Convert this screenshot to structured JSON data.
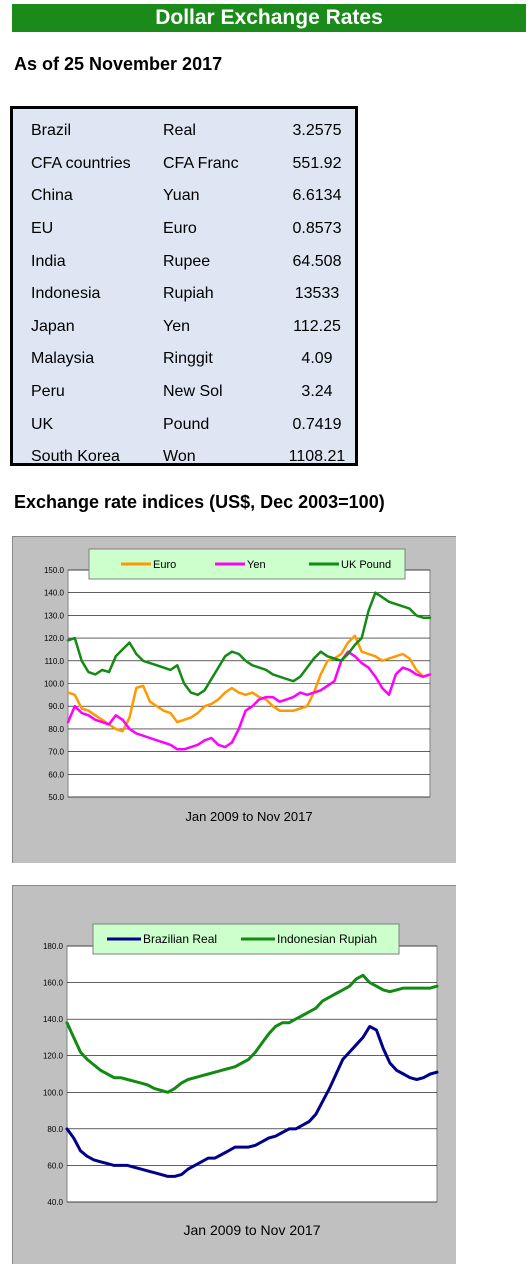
{
  "header": {
    "title": "Dollar Exchange Rates",
    "as_of": "As of 25 November 2017"
  },
  "rates": [
    {
      "country": "Brazil",
      "currency": "Real",
      "value": "3.2575"
    },
    {
      "country": "CFA countries",
      "currency": "CFA Franc",
      "value": "551.92"
    },
    {
      "country": "China",
      "currency": "Yuan",
      "value": "6.6134"
    },
    {
      "country": "EU",
      "currency": "Euro",
      "value": "0.8573"
    },
    {
      "country": "India",
      "currency": "Rupee",
      "value": "64.508"
    },
    {
      "country": "Indonesia",
      "currency": "Rupiah",
      "value": "13533"
    },
    {
      "country": "Japan",
      "currency": "Yen",
      "value": "112.25"
    },
    {
      "country": "Malaysia",
      "currency": "Ringgit",
      "value": "4.09"
    },
    {
      "country": "Peru",
      "currency": "New Sol",
      "value": "3.24"
    },
    {
      "country": "UK",
      "currency": "Pound",
      "value": "0.7419"
    },
    {
      "country": "South Korea",
      "currency": "Won",
      "value": "1108.21"
    }
  ],
  "indices_title": "Exchange rate indices (US$, Dec 2003=100)",
  "chart_data": [
    {
      "type": "line",
      "title": "",
      "xlabel": "Jan 2009  to Nov 2017",
      "ylabel": "",
      "ylim": [
        50,
        150
      ],
      "yticks": [
        "50.0",
        "60.0",
        "70.0",
        "80.0",
        "90.0",
        "100.0",
        "110.0",
        "120.0",
        "130.0",
        "140.0",
        "150.0"
      ],
      "grid": "horizontal",
      "legend": "top",
      "x_range": [
        "Jan 2009",
        "Nov 2017"
      ],
      "series": [
        {
          "name": "Euro",
          "color": "#ff9900",
          "values": [
            96,
            95,
            89,
            88,
            86,
            84,
            82,
            80,
            79,
            85,
            98,
            99,
            92,
            90,
            88,
            87,
            83,
            84,
            85,
            87,
            90,
            91,
            93,
            96,
            98,
            96,
            95,
            96,
            94,
            93,
            90,
            88,
            88,
            88,
            89,
            90,
            96,
            104,
            110,
            111,
            113,
            118,
            121,
            114,
            113,
            112,
            110,
            111,
            112,
            113,
            111,
            106,
            103,
            104
          ]
        },
        {
          "name": "Yen",
          "color": "#ff00ff",
          "values": [
            83,
            90,
            87,
            86,
            84,
            83,
            82,
            86,
            84,
            80,
            78,
            77,
            76,
            75,
            74,
            73,
            71,
            71,
            72,
            73,
            75,
            76,
            73,
            72,
            74,
            80,
            88,
            90,
            93,
            94,
            94,
            92,
            93,
            94,
            96,
            95,
            96,
            97,
            99,
            101,
            110,
            114,
            112,
            109,
            107,
            103,
            98,
            95,
            104,
            107,
            106,
            104,
            103,
            104
          ]
        },
        {
          "name": "UK Pound",
          "color": "#138a13",
          "values": [
            119,
            120,
            110,
            105,
            104,
            106,
            105,
            112,
            115,
            118,
            113,
            110,
            109,
            108,
            107,
            106,
            108,
            100,
            96,
            95,
            97,
            102,
            107,
            112,
            114,
            113,
            110,
            108,
            107,
            106,
            104,
            103,
            102,
            101,
            103,
            107,
            111,
            114,
            112,
            111,
            110,
            113,
            117,
            120,
            132,
            140,
            138,
            136,
            135,
            134,
            133,
            130,
            129,
            129
          ]
        }
      ]
    },
    {
      "type": "line",
      "title": "",
      "xlabel": "Jan 2009 to Nov 2017",
      "ylabel": "",
      "ylim": [
        40,
        180
      ],
      "yticks": [
        "40.0",
        "60.0",
        "80.0",
        "100.0",
        "120.0",
        "140.0",
        "160.0",
        "180.0"
      ],
      "grid": "horizontal",
      "legend": "top",
      "x_range": [
        "Jan 2009",
        "Nov 2017"
      ],
      "series": [
        {
          "name": "Brazilian Real",
          "color": "#00008b",
          "values": [
            80,
            75,
            68,
            65,
            63,
            62,
            61,
            60,
            60,
            60,
            59,
            58,
            57,
            56,
            55,
            54,
            54,
            55,
            58,
            60,
            62,
            64,
            64,
            66,
            68,
            70,
            70,
            70,
            71,
            73,
            75,
            76,
            78,
            80,
            80,
            82,
            84,
            88,
            95,
            102,
            110,
            118,
            122,
            126,
            130,
            136,
            134,
            124,
            116,
            112,
            110,
            108,
            107,
            108,
            110,
            111
          ]
        },
        {
          "name": "Indonesian Rupiah",
          "color": "#138a13",
          "values": [
            138,
            130,
            122,
            118,
            115,
            112,
            110,
            108,
            108,
            107,
            106,
            105,
            104,
            102,
            101,
            100,
            102,
            105,
            107,
            108,
            109,
            110,
            111,
            112,
            113,
            114,
            116,
            118,
            122,
            127,
            132,
            136,
            138,
            138,
            140,
            142,
            144,
            146,
            150,
            152,
            154,
            156,
            158,
            162,
            164,
            160,
            158,
            156,
            155,
            156,
            157,
            157,
            157,
            157,
            157,
            158
          ]
        }
      ]
    }
  ]
}
